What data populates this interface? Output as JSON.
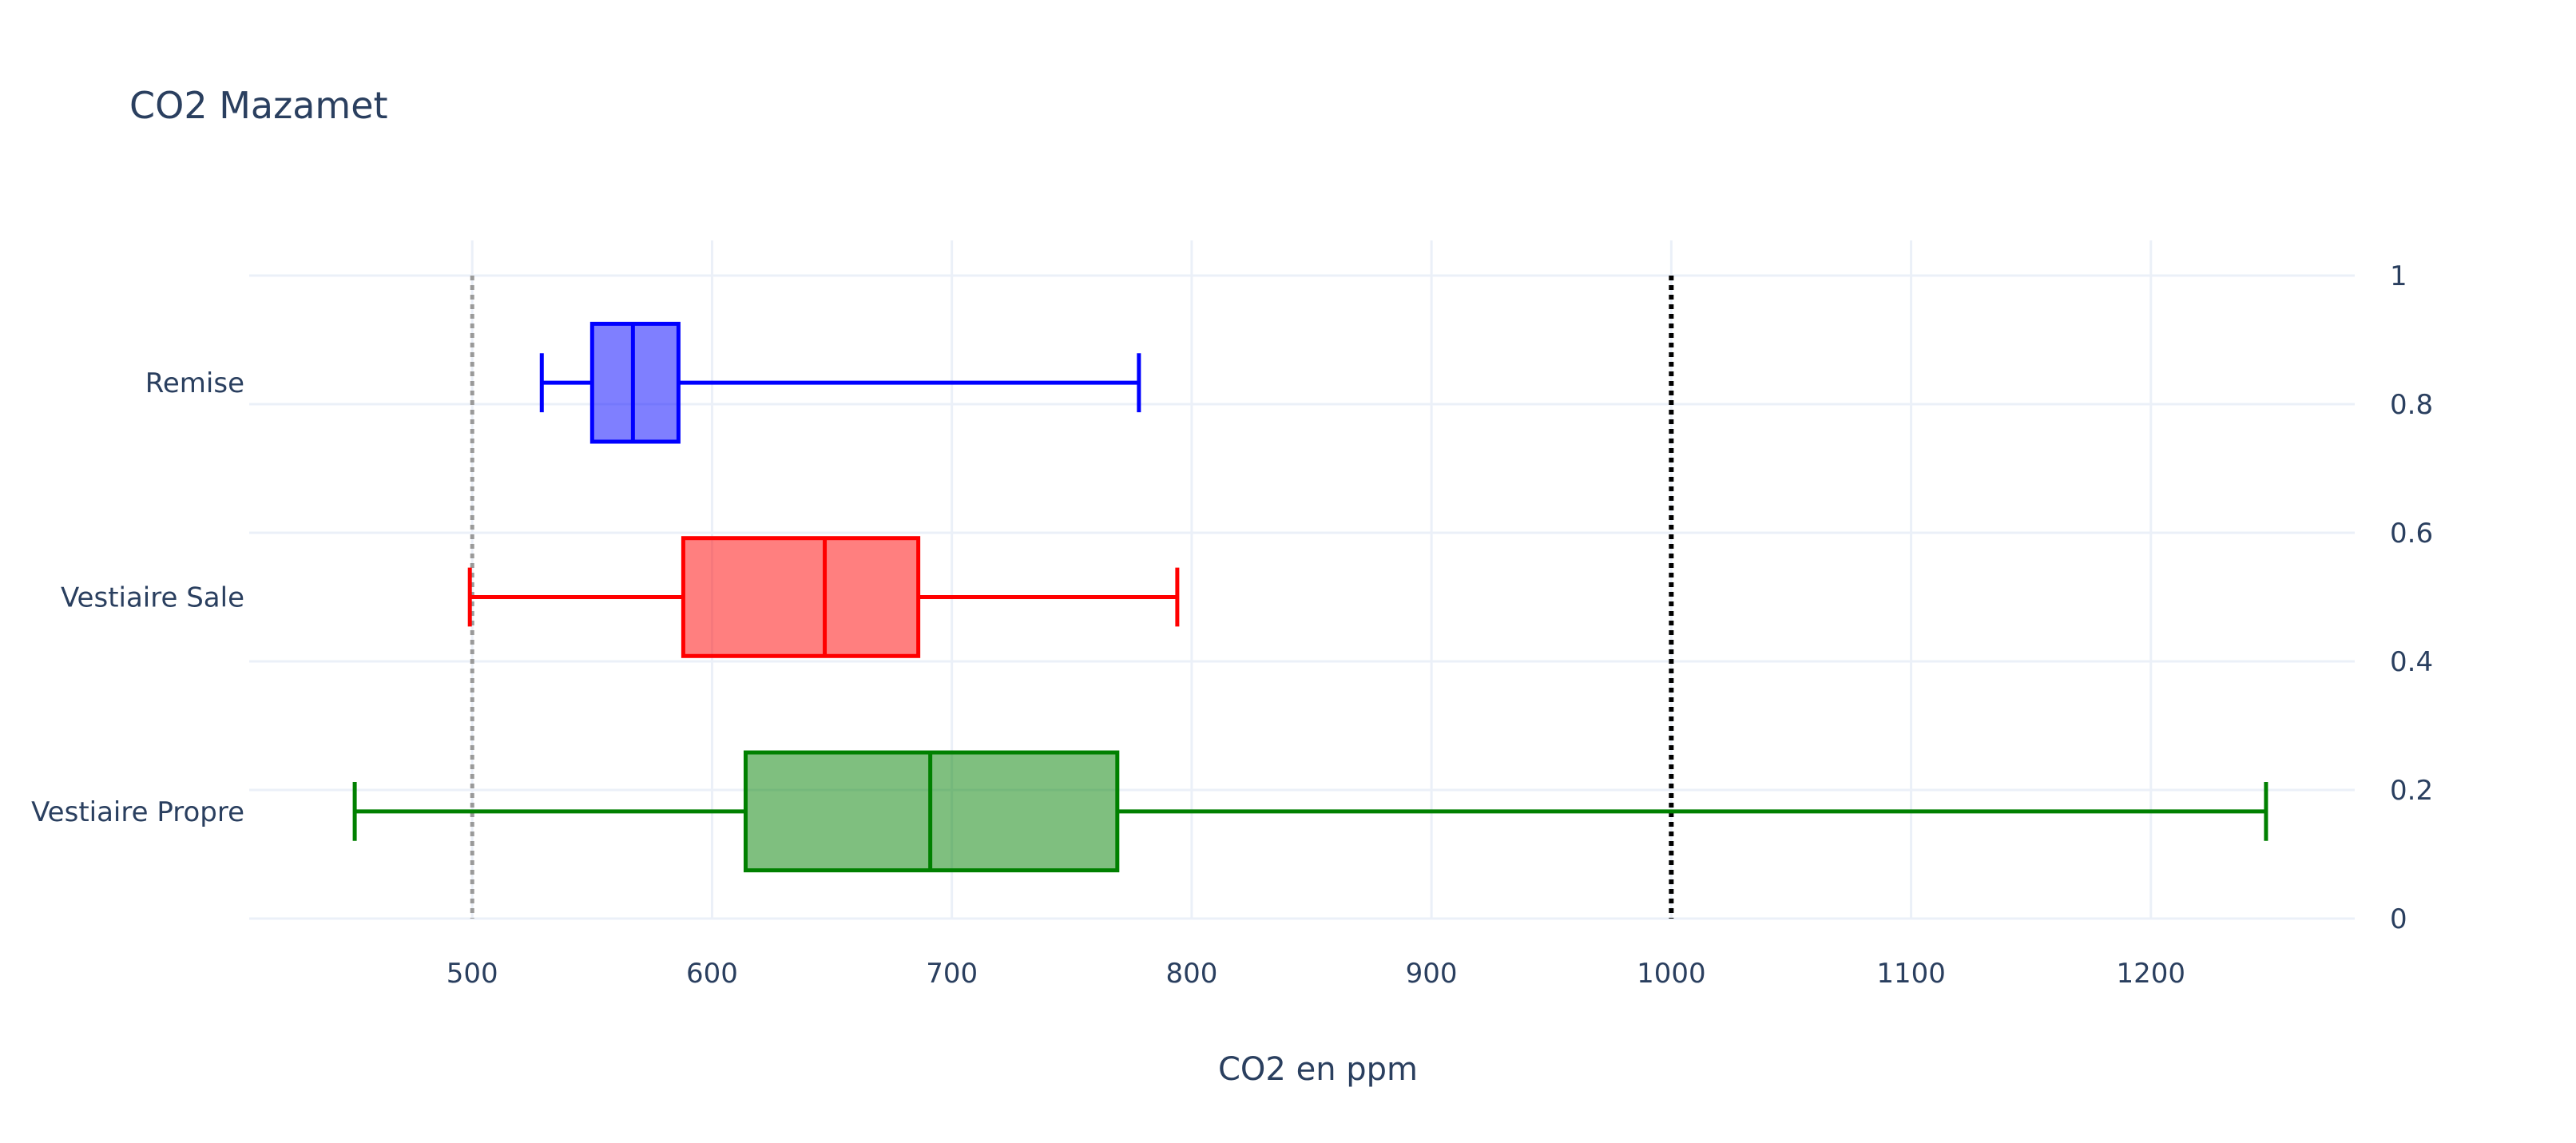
{
  "chart_data": {
    "type": "box",
    "orientation": "horizontal",
    "title": "CO2 Mazamet",
    "xlabel": "CO2 en ppm",
    "ylabel": "",
    "xlim": [
      407,
      1285
    ],
    "x_ticks": [
      500,
      600,
      700,
      800,
      900,
      1000,
      1100,
      1200
    ],
    "y2_ticks": [
      0,
      0.2,
      0.4,
      0.6,
      0.8,
      1
    ],
    "grid": true,
    "legend": "none",
    "series": [
      {
        "category": "Remise",
        "color": "#0000ff",
        "min": 529,
        "q1": 550,
        "median": 567,
        "q3": 586,
        "max": 778
      },
      {
        "category": "Vestiaire Sale",
        "color": "#ff0000",
        "min": 499,
        "q1": 588,
        "median": 647,
        "q3": 686,
        "max": 794
      },
      {
        "category": "Vestiaire Propre",
        "color": "#008000",
        "min": 451,
        "q1": 614,
        "median": 691,
        "q3": 769,
        "max": 1248
      }
    ],
    "reference_lines": [
      {
        "x": 500,
        "color": "#999999",
        "style": "dotted"
      },
      {
        "x": 1000,
        "color": "#000000",
        "style": "dotted"
      }
    ]
  }
}
